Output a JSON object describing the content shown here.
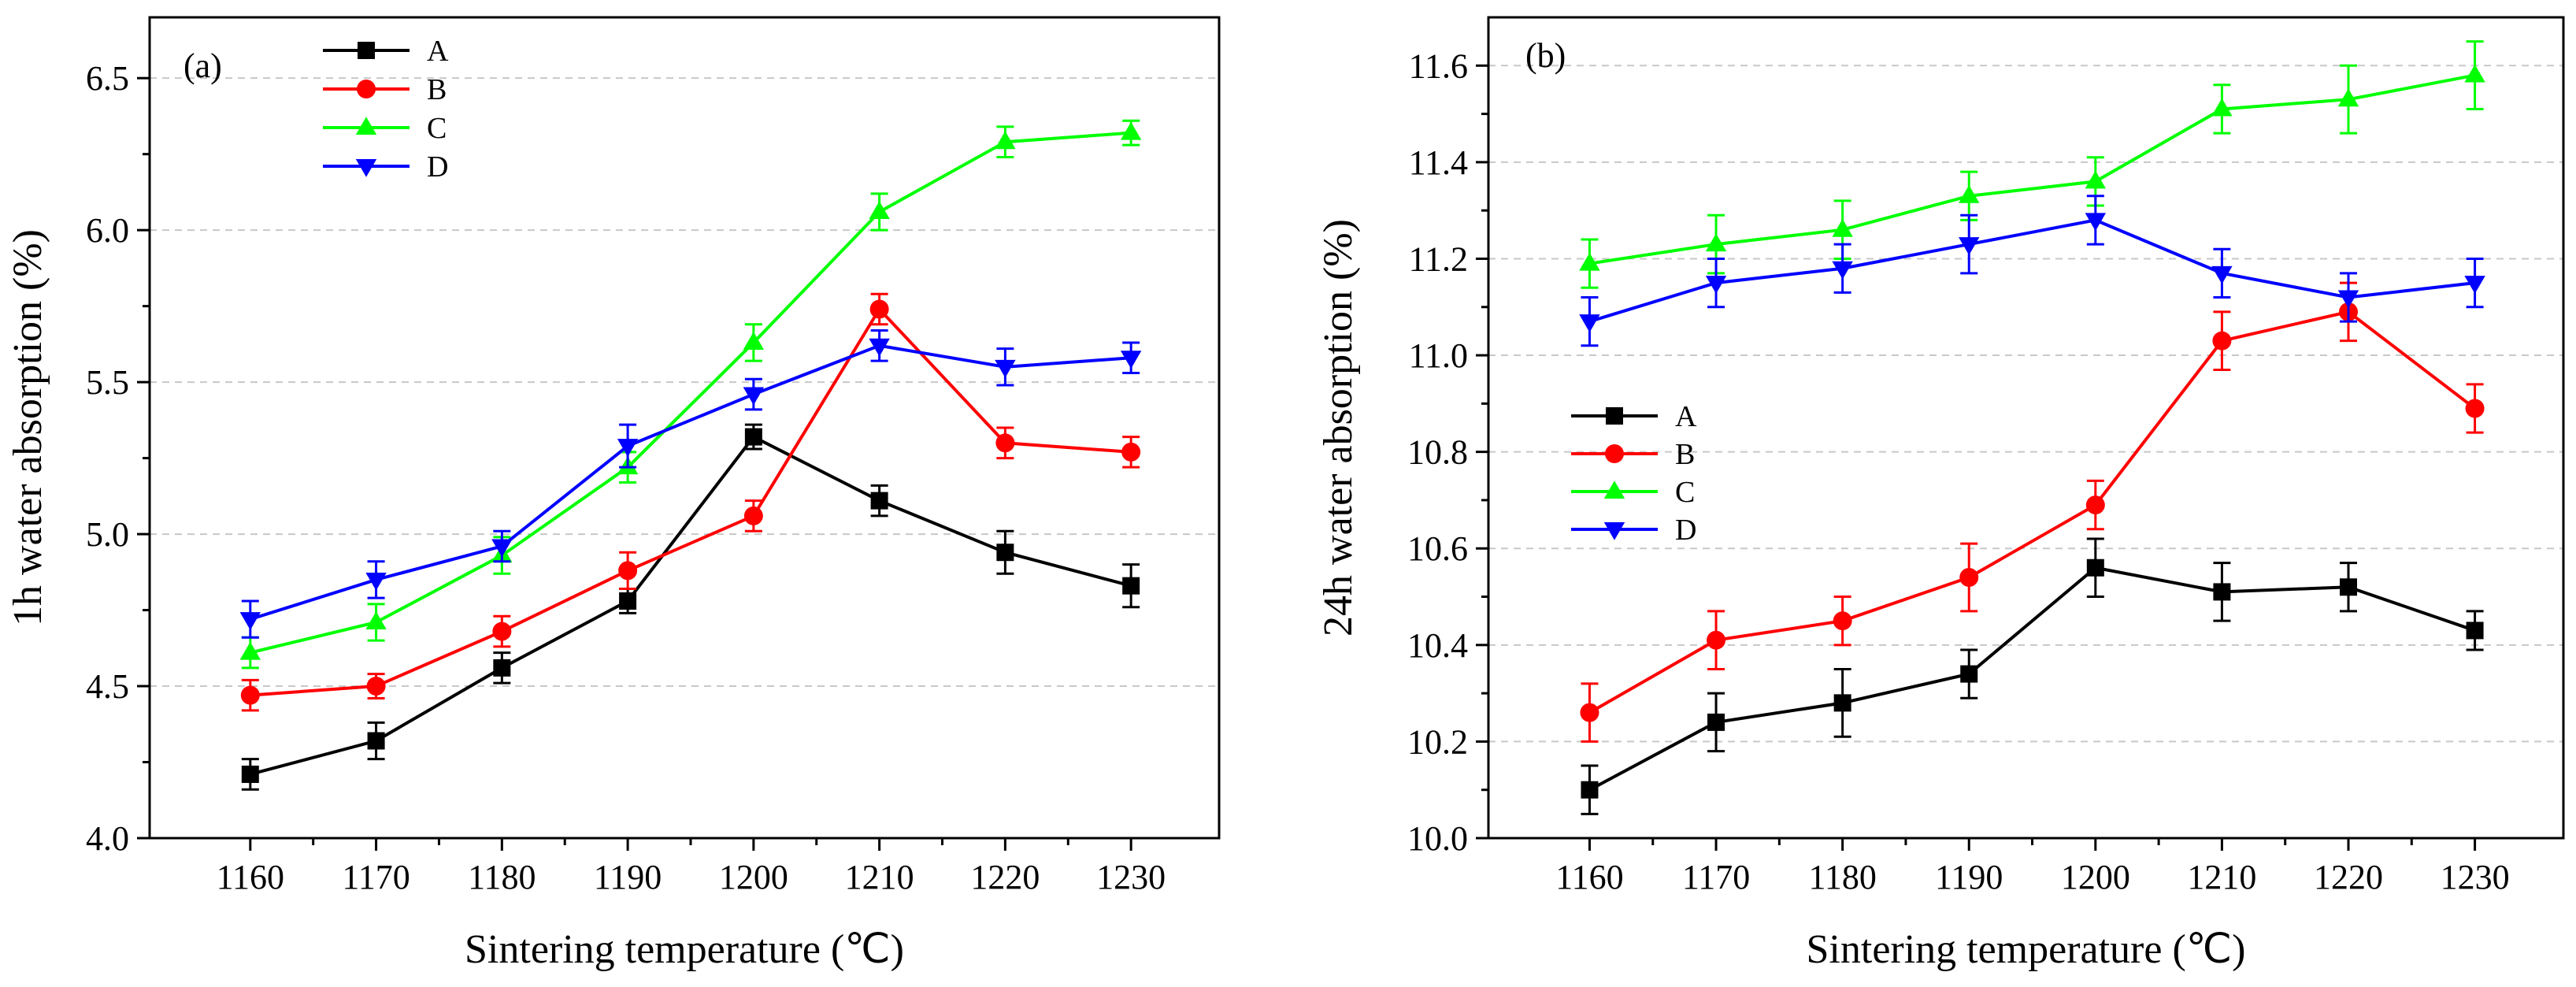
{
  "chart_data": [
    {
      "type": "line",
      "panel_label": "(a)",
      "xlabel": "Sintering temperature (℃)",
      "ylabel": "1h water absorption (%)",
      "x": [
        1160,
        1170,
        1180,
        1190,
        1200,
        1210,
        1220,
        1230
      ],
      "xlim": [
        1152,
        1237
      ],
      "ylim": [
        4.0,
        6.7
      ],
      "yticks": [
        4.0,
        4.5,
        5.0,
        5.5,
        6.0,
        6.5
      ],
      "ytick_labels": [
        "4.0",
        "4.5",
        "5.0",
        "5.5",
        "6.0",
        "6.5"
      ],
      "xtick_labels": [
        "1160",
        "1170",
        "1180",
        "1190",
        "1200",
        "1210",
        "1220",
        "1230"
      ],
      "grid": "horizontal dashed",
      "legend_position": "top-left",
      "series": [
        {
          "name": "A",
          "color": "#000000",
          "marker": "square",
          "values": [
            4.21,
            4.32,
            4.56,
            4.78,
            5.32,
            5.11,
            4.94,
            4.83
          ],
          "errors": [
            0.05,
            0.06,
            0.05,
            0.04,
            0.04,
            0.05,
            0.07,
            0.07
          ]
        },
        {
          "name": "B",
          "color": "#ff0000",
          "marker": "circle",
          "values": [
            4.47,
            4.5,
            4.68,
            4.88,
            5.06,
            5.74,
            5.3,
            5.27
          ],
          "errors": [
            0.05,
            0.04,
            0.05,
            0.06,
            0.05,
            0.05,
            0.05,
            0.05
          ]
        },
        {
          "name": "C",
          "color": "#00ff00",
          "marker": "triangle-up",
          "values": [
            4.61,
            4.71,
            4.93,
            5.22,
            5.63,
            6.06,
            6.29,
            6.32
          ],
          "errors": [
            0.05,
            0.06,
            0.06,
            0.05,
            0.06,
            0.06,
            0.05,
            0.04
          ]
        },
        {
          "name": "D",
          "color": "#0000ff",
          "marker": "triangle-down",
          "values": [
            4.72,
            4.85,
            4.96,
            5.29,
            5.46,
            5.62,
            5.55,
            5.58
          ],
          "errors": [
            0.06,
            0.06,
            0.05,
            0.07,
            0.05,
            0.05,
            0.06,
            0.05
          ]
        }
      ]
    },
    {
      "type": "line",
      "panel_label": "(b)",
      "xlabel": "Sintering temperature (℃)",
      "ylabel": "24h water absorption (%)",
      "x": [
        1160,
        1170,
        1180,
        1190,
        1200,
        1210,
        1220,
        1230
      ],
      "xlim": [
        1152,
        1237
      ],
      "ylim": [
        10.0,
        11.7
      ],
      "yticks": [
        10.0,
        10.2,
        10.4,
        10.6,
        10.8,
        11.0,
        11.2,
        11.4,
        11.6
      ],
      "ytick_labels": [
        "10.0",
        "10.2",
        "10.4",
        "10.6",
        "10.8",
        "11.0",
        "11.2",
        "11.4",
        "11.6"
      ],
      "xtick_labels": [
        "1160",
        "1170",
        "1180",
        "1190",
        "1200",
        "1210",
        "1220",
        "1230"
      ],
      "grid": "horizontal dashed",
      "legend_position": "center-left",
      "series": [
        {
          "name": "A",
          "color": "#000000",
          "marker": "square",
          "values": [
            10.1,
            10.24,
            10.28,
            10.34,
            10.56,
            10.51,
            10.52,
            10.43
          ],
          "errors": [
            0.05,
            0.06,
            0.07,
            0.05,
            0.06,
            0.06,
            0.05,
            0.04
          ]
        },
        {
          "name": "B",
          "color": "#ff0000",
          "marker": "circle",
          "values": [
            10.26,
            10.41,
            10.45,
            10.54,
            10.69,
            11.03,
            11.09,
            10.89
          ],
          "errors": [
            0.06,
            0.06,
            0.05,
            0.07,
            0.05,
            0.06,
            0.06,
            0.05
          ]
        },
        {
          "name": "C",
          "color": "#00ff00",
          "marker": "triangle-up",
          "values": [
            11.19,
            11.23,
            11.26,
            11.33,
            11.36,
            11.51,
            11.53,
            11.58
          ],
          "errors": [
            0.05,
            0.06,
            0.06,
            0.05,
            0.05,
            0.05,
            0.07,
            0.07
          ]
        },
        {
          "name": "D",
          "color": "#0000ff",
          "marker": "triangle-down",
          "values": [
            11.07,
            11.15,
            11.18,
            11.23,
            11.28,
            11.17,
            11.12,
            11.15
          ],
          "errors": [
            0.05,
            0.05,
            0.05,
            0.06,
            0.05,
            0.05,
            0.05,
            0.05
          ]
        }
      ]
    }
  ]
}
